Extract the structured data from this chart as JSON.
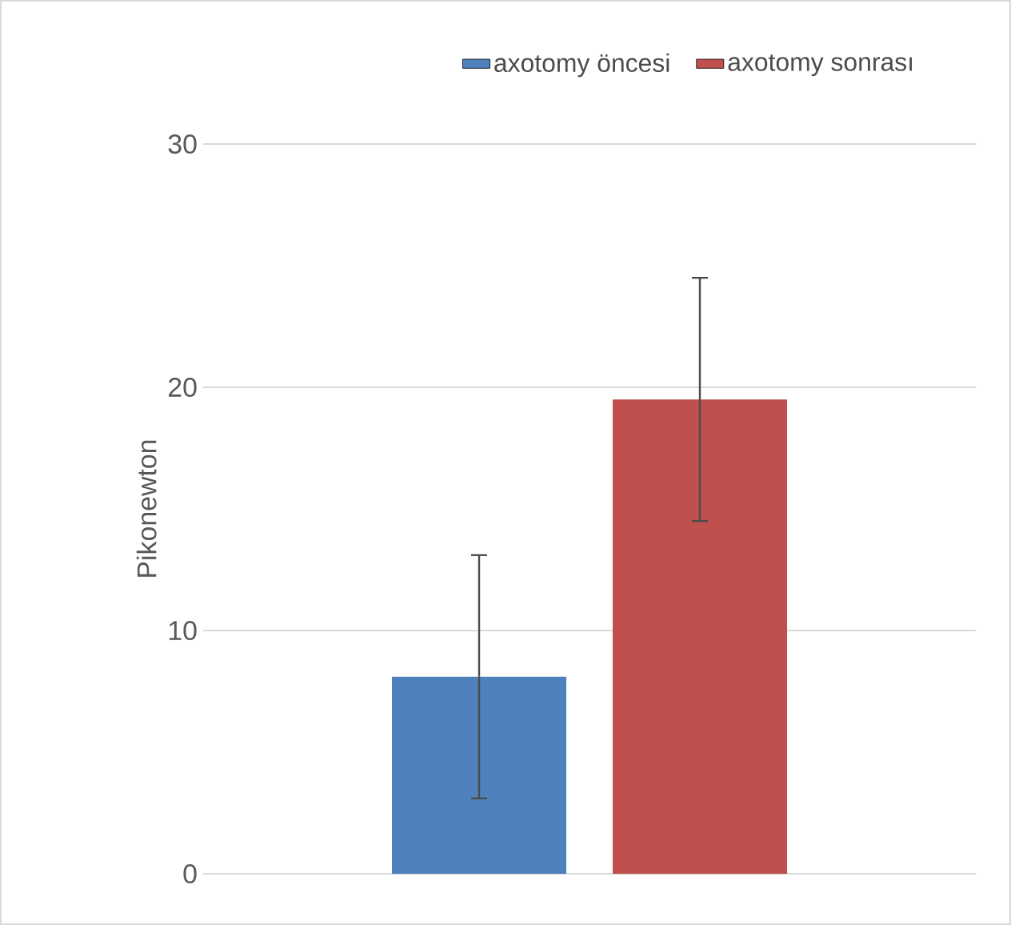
{
  "chart_data": {
    "type": "bar",
    "ylabel": "Pikonewton",
    "categories": [
      null
    ],
    "series": [
      {
        "name": "axotomy öncesi",
        "color": "#4f81bd",
        "values": [
          8.1
        ],
        "errors": [
          5
        ]
      },
      {
        "name": "axotomy sonrası",
        "color": "#c0504d",
        "values": [
          19.5
        ],
        "errors": [
          5
        ]
      }
    ],
    "ylim": [
      0,
      30
    ],
    "yticks": [
      0,
      10,
      20,
      30
    ],
    "grid": "y",
    "legend": "top"
  }
}
